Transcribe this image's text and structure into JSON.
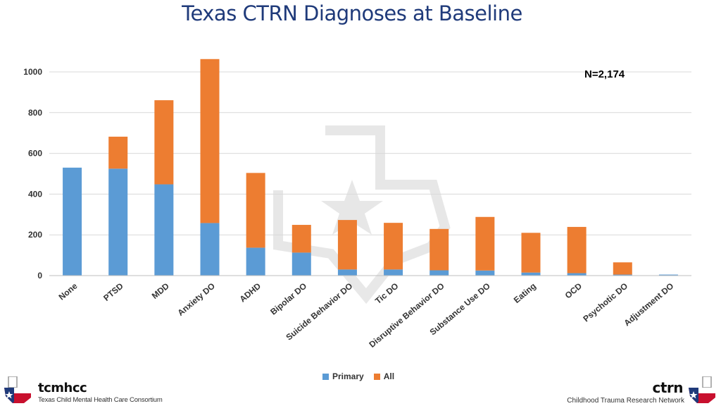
{
  "title": "Texas CTRN Diagnoses at Baseline",
  "colors": {
    "primary": "#5b9bd5",
    "all": "#ed7d31",
    "title": "#1f3a7a",
    "grid": "#d9d9d9"
  },
  "chart_data": {
    "type": "bar",
    "stacked": true,
    "annotation": "N=2,174",
    "categories": [
      "None",
      "PTSD",
      "MDD",
      "Anxiety DO",
      "ADHD",
      "Bipolar DO",
      "Suicide Behavior DO",
      "Tic DO",
      "Disruptive Behavior DO",
      "Substance Use DO",
      "Eating",
      "OCD",
      "Psychotic DO",
      "Adjustment DO"
    ],
    "series": [
      {
        "name": "Primary",
        "values": [
          530,
          525,
          448,
          258,
          137,
          113,
          30,
          30,
          26,
          25,
          15,
          12,
          5,
          5
        ]
      },
      {
        "name": "All",
        "values": [
          0,
          157,
          413,
          805,
          367,
          136,
          243,
          229,
          203,
          263,
          195,
          227,
          60,
          0
        ]
      }
    ],
    "yticks": [
      0,
      200,
      400,
      600,
      800,
      1000
    ],
    "ylim": [
      0,
      1100
    ],
    "grid": true,
    "legend_position": "bottom"
  },
  "footer": {
    "left_brand": "tcmhcc",
    "left_sub": "Texas Child Mental Health Care Consortium",
    "right_brand": "ctrn",
    "right_sub": "Childhood Trauma Research Network"
  }
}
